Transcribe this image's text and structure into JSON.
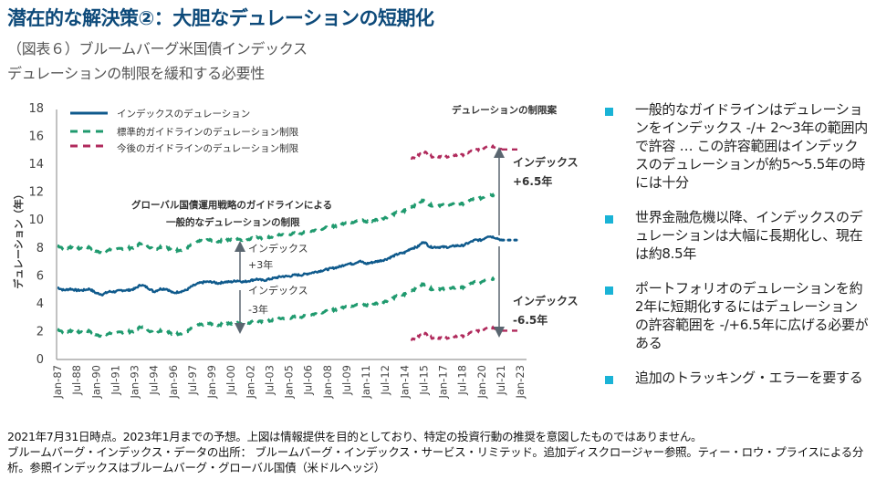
{
  "header": {
    "title": "潜在的な解決策②：大胆なデュレーションの短期化",
    "subtitle1": "（図表６）ブルームバーグ米国債インデックス",
    "subtitle2": "デュレーションの制限を緩和する必要性"
  },
  "chart_data": {
    "type": "line",
    "title": "",
    "ylabel": "デュレーション（年）",
    "xlabel": "",
    "ylim": [
      0,
      18
    ],
    "yticks": [
      "0",
      "2",
      "4",
      "6",
      "8",
      "10",
      "12",
      "14",
      "16",
      "18"
    ],
    "xticks": [
      "Jan-87",
      "Jul-88",
      "Jan-90",
      "Jul-91",
      "Jan-93",
      "Jul-94",
      "Jan-96",
      "Jul-97",
      "Jan-99",
      "Jul-00",
      "Jan-02",
      "Jul-03",
      "Jan-05",
      "Jul-06",
      "Jan-08",
      "Jul-09",
      "Jan-11",
      "Jul-12",
      "Jan-14",
      "Jul-15",
      "Jan-17",
      "Jul-18",
      "Jan-20",
      "Jul-21",
      "Jan-23"
    ],
    "xrange": [
      1987.0,
      2023.0
    ],
    "grid": false,
    "legend_position": "top-left",
    "legend": [
      {
        "name": "インデックスのデュレーション",
        "color": "#0f5a8c",
        "style": "solid"
      },
      {
        "name": "標準的ガイドラインのデュレーション制限",
        "color": "#1f9a6e",
        "style": "dashed"
      },
      {
        "name": "今後のガイドラインのデュレーション制限",
        "color": "#b02a5c",
        "style": "dashed"
      }
    ],
    "series": [
      {
        "name": "インデックスのデュレーション",
        "color": "#0f5a8c",
        "x": [
          1987.0,
          1987.5,
          1988.0,
          1988.5,
          1989.0,
          1989.5,
          1990.0,
          1990.5,
          1991.0,
          1991.5,
          1992.0,
          1992.5,
          1993.0,
          1993.5,
          1994.0,
          1994.5,
          1995.0,
          1995.5,
          1996.0,
          1996.5,
          1997.0,
          1997.5,
          1998.0,
          1998.5,
          1999.0,
          1999.5,
          2000.0,
          2000.5,
          2001.0,
          2001.5,
          2002.0,
          2002.5,
          2003.0,
          2003.5,
          2004.0,
          2004.5,
          2005.0,
          2005.5,
          2006.0,
          2006.5,
          2007.0,
          2007.5,
          2008.0,
          2008.5,
          2009.0,
          2009.5,
          2010.0,
          2010.5,
          2011.0,
          2011.5,
          2012.0,
          2012.5,
          2013.0,
          2013.5,
          2014.0,
          2014.5,
          2015.0,
          2015.5,
          2016.0,
          2016.5,
          2017.0,
          2017.5,
          2018.0,
          2018.5,
          2019.0,
          2019.5,
          2020.0,
          2020.5,
          2021.0,
          2021.58
        ],
        "values": [
          5.1,
          4.9,
          5.0,
          4.9,
          4.9,
          5.0,
          4.7,
          4.6,
          4.8,
          4.8,
          4.9,
          4.9,
          5.0,
          5.3,
          5.1,
          4.8,
          5.0,
          5.0,
          4.7,
          4.8,
          4.9,
          5.2,
          5.4,
          5.5,
          5.5,
          5.4,
          5.5,
          5.5,
          5.6,
          5.5,
          5.6,
          5.7,
          5.6,
          5.7,
          5.8,
          5.9,
          5.9,
          6.0,
          6.0,
          6.1,
          6.2,
          6.3,
          6.4,
          6.5,
          6.6,
          6.8,
          6.8,
          7.0,
          6.8,
          6.9,
          7.0,
          7.1,
          7.3,
          7.5,
          7.6,
          7.9,
          8.0,
          8.4,
          8.0,
          8.0,
          8.0,
          8.0,
          8.1,
          8.1,
          8.3,
          8.5,
          8.5,
          8.8,
          8.7,
          8.5
        ]
      },
      {
        "name": "インデックスのデュレーション（予想）",
        "color": "#0f5a8c",
        "style": "dotted",
        "x": [
          2021.58,
          2023.0
        ],
        "values": [
          8.5,
          8.5
        ]
      },
      {
        "name": "標準的ガイドライン上限（インデックス+3年）",
        "color": "#1f9a6e",
        "offset": 3,
        "x_end": 2021.0
      },
      {
        "name": "標準的ガイドライン下限（インデックス-3年）",
        "color": "#1f9a6e",
        "offset": -3,
        "x_end": 2021.0
      },
      {
        "name": "今後のガイドライン上限（インデックス+6.5年）",
        "color": "#b02a5c",
        "offset": 6.5,
        "x_start": 2014.5,
        "forecast_value": 15.0
      },
      {
        "name": "今後のガイドライン下限（インデックス-6.5年）",
        "color": "#b02a5c",
        "offset": -6.5,
        "x_start": 2014.5,
        "forecast_value": 2.0
      }
    ],
    "annotations": {
      "proposal_title": "デュレーションの制限案",
      "guideline_line1": "グローバル国債運用戦略のガイドラインによる",
      "guideline_line2": "一般的なデュレーションの制限",
      "plus3_line1": "インデックス",
      "plus3_line2": "+3年",
      "minus3_line1": "インデックス",
      "minus3_line2": "-3年",
      "plus65_line1": "インデックス",
      "plus65_line2": "+6.5年",
      "minus65_line1": "インデックス",
      "minus65_line2": "-6.5年"
    }
  },
  "bullets": [
    {
      "text": "一般的なガイドラインはデュレーションをインデックス -/+ 2～3年の範囲内で許容 … この許容範囲はインデックスのデュレーションが約5～5.5年の時には十分"
    },
    {
      "text": "世界金融危機以降、インデックスのデュレーションは大幅に長期化し、現在は約8.5年"
    },
    {
      "text": "ポートフォリオのデュレーションを約2年に短期化するにはデュレーションの許容範囲を -/+6.5年に広げる必要がある"
    },
    {
      "text": "追加のトラッキング・エラーを要する"
    }
  ],
  "colors": {
    "title": "#0d4a7a",
    "bullet": "#1ab3d6",
    "index_line": "#0f5a8c",
    "standard_limit": "#1f9a6e",
    "future_limit": "#b02a5c",
    "arrow": "#5a6670"
  },
  "footer": {
    "line1": "2021年7月31日時点。2023年1月までの予想。上図は情報提供を目的としており、特定の投資行動の推奨を意図したものではありません。",
    "line2": "ブルームバーグ・インデックス・データの出所： ブルームバーグ・インデックス・サービス・リミテッド。追加ディスクロージャー参照。ティー・ロウ・プライスによる分析。参照インデックスはブルームバーグ・グローバル国債（米ドルヘッジ）"
  }
}
